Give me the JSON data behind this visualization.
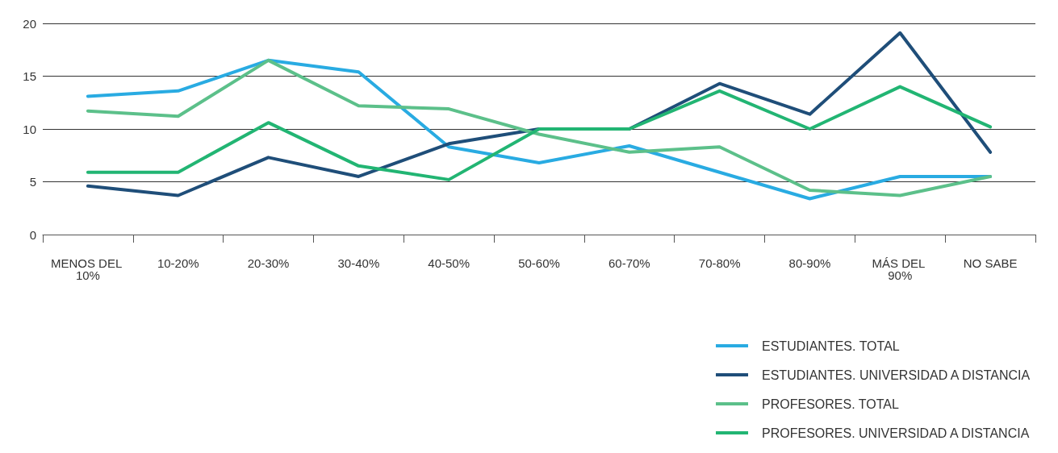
{
  "chart_data": {
    "type": "line",
    "categories": [
      "MENOS DEL 10%",
      "10-20%",
      "20-30%",
      "30-40%",
      "40-50%",
      "50-60%",
      "60-70%",
      "70-80%",
      "80-90%",
      "MÁS DEL 90%",
      "NO SABE"
    ],
    "series": [
      {
        "name": "ESTUDIANTES. TOTAL",
        "color": "#29abe2",
        "values": [
          13.1,
          13.6,
          16.5,
          15.4,
          8.3,
          6.8,
          8.4,
          5.9,
          3.4,
          5.5,
          5.5
        ]
      },
      {
        "name": "ESTUDIANTES. UNIVERSIDAD A DISTANCIA",
        "color": "#1f4e79",
        "values": [
          4.6,
          3.7,
          7.3,
          5.5,
          8.6,
          10.0,
          10.0,
          14.3,
          11.4,
          19.1,
          7.8
        ]
      },
      {
        "name": "PROFESORES. TOTAL",
        "color": "#5cc08a",
        "values": [
          11.7,
          11.2,
          16.5,
          12.2,
          11.9,
          9.5,
          7.8,
          8.3,
          4.2,
          3.7,
          5.5
        ]
      },
      {
        "name": "PROFESORES. UNIVERSIDAD A DISTANCIA",
        "color": "#22b573",
        "values": [
          5.9,
          5.9,
          10.6,
          6.5,
          5.2,
          10.0,
          10.0,
          13.6,
          10.0,
          14.0,
          10.2
        ]
      }
    ],
    "ylim": [
      0,
      20
    ],
    "yticks": [
      0,
      5,
      10,
      15,
      20
    ],
    "grid": "y",
    "legend": "bottom right",
    "marker": "none",
    "line_style": "solid"
  }
}
